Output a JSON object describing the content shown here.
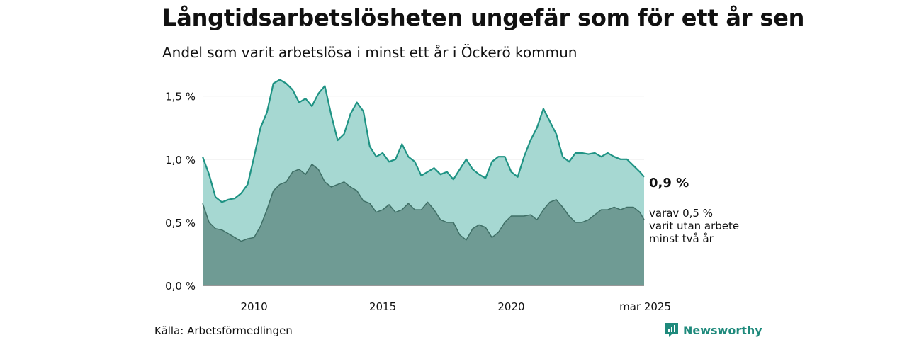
{
  "title": "Långtidsarbetslösheten ungefär som för ett år sen",
  "subtitle": "Andel som varit arbetslösa i minst ett år i Öckerö kommun",
  "source": "Källa: Arbetsförmedlingen",
  "brand": {
    "name": "Newsworthy",
    "icon": "newsworthy-logo-icon"
  },
  "colors": {
    "series1_line": "#1f9384",
    "series1_fill": "#a6d8d2",
    "series2_line": "#3f6f66",
    "series2_fill": "#6f9b94",
    "gridline": "#d4d4d4",
    "text": "#111111",
    "brand": "#1f8a7c"
  },
  "chart_data": {
    "type": "area",
    "title": "Långtidsarbetslösheten ungefär som för ett år sen",
    "subtitle": "Andel som varit arbetslösa i minst ett år i Öckerö kommun",
    "x_range": [
      "2008-01",
      "2025-03"
    ],
    "ylim": [
      0,
      1.7
    ],
    "y_ticks": [
      0.0,
      0.5,
      1.0,
      1.5
    ],
    "y_tick_labels": [
      "0,0 %",
      "0,5 %",
      "1,0 %",
      "1,5 %"
    ],
    "x_tick_labels": [
      "2010",
      "2015",
      "2020",
      "mar 2025"
    ],
    "grid": true,
    "legend": "none",
    "end_labels": {
      "series1": "0,9 %",
      "series2": [
        "varav 0,5 %",
        "varit utan arbete",
        "minst två år"
      ]
    },
    "series": [
      {
        "x": [
          "2008-01",
          "2008-04",
          "2008-07",
          "2008-10",
          "2009-01",
          "2009-04",
          "2009-07",
          "2009-10",
          "2010-01",
          "2010-04",
          "2010-07",
          "2010-10",
          "2011-01",
          "2011-04",
          "2011-07",
          "2011-10",
          "2012-01",
          "2012-04",
          "2012-07",
          "2012-10",
          "2013-01",
          "2013-04",
          "2013-07",
          "2013-10",
          "2014-01",
          "2014-04",
          "2014-07",
          "2014-10",
          "2015-01",
          "2015-04",
          "2015-07",
          "2015-10",
          "2016-01",
          "2016-04",
          "2016-07",
          "2016-10",
          "2017-01",
          "2017-04",
          "2017-07",
          "2017-10",
          "2018-01",
          "2018-04",
          "2018-07",
          "2018-10",
          "2019-01",
          "2019-04",
          "2019-07",
          "2019-10",
          "2020-01",
          "2020-04",
          "2020-07",
          "2020-10",
          "2021-01",
          "2021-04",
          "2021-07",
          "2021-10",
          "2022-01",
          "2022-04",
          "2022-07",
          "2022-10",
          "2023-01",
          "2023-04",
          "2023-07",
          "2023-10",
          "2024-01",
          "2024-04",
          "2024-07",
          "2024-10",
          "2025-01",
          "2025-03"
        ],
        "values": [
          1.02,
          0.88,
          0.7,
          0.66,
          0.68,
          0.69,
          0.73,
          0.8,
          1.02,
          1.25,
          1.37,
          1.6,
          1.63,
          1.6,
          1.55,
          1.45,
          1.48,
          1.42,
          1.52,
          1.58,
          1.35,
          1.15,
          1.2,
          1.36,
          1.45,
          1.38,
          1.1,
          1.02,
          1.05,
          0.98,
          1.0,
          1.12,
          1.02,
          0.98,
          0.87,
          0.9,
          0.93,
          0.88,
          0.9,
          0.84,
          0.92,
          1.0,
          0.92,
          0.88,
          0.85,
          0.98,
          1.02,
          1.02,
          0.9,
          0.86,
          1.02,
          1.15,
          1.25,
          1.4,
          1.3,
          1.2,
          1.02,
          0.98,
          1.05,
          1.05,
          1.04,
          1.05,
          1.02,
          1.05,
          1.02,
          1.0,
          1.0,
          0.95,
          0.9,
          0.86
        ]
      },
      {
        "x": [
          "2008-01",
          "2008-04",
          "2008-07",
          "2008-10",
          "2009-01",
          "2009-04",
          "2009-07",
          "2009-10",
          "2010-01",
          "2010-04",
          "2010-07",
          "2010-10",
          "2011-01",
          "2011-04",
          "2011-07",
          "2011-10",
          "2012-01",
          "2012-04",
          "2012-07",
          "2012-10",
          "2013-01",
          "2013-04",
          "2013-07",
          "2013-10",
          "2014-01",
          "2014-04",
          "2014-07",
          "2014-10",
          "2015-01",
          "2015-04",
          "2015-07",
          "2015-10",
          "2016-01",
          "2016-04",
          "2016-07",
          "2016-10",
          "2017-01",
          "2017-04",
          "2017-07",
          "2017-10",
          "2018-01",
          "2018-04",
          "2018-07",
          "2018-10",
          "2019-01",
          "2019-04",
          "2019-07",
          "2019-10",
          "2020-01",
          "2020-04",
          "2020-07",
          "2020-10",
          "2021-01",
          "2021-04",
          "2021-07",
          "2021-10",
          "2022-01",
          "2022-04",
          "2022-07",
          "2022-10",
          "2023-01",
          "2023-04",
          "2023-07",
          "2023-10",
          "2024-01",
          "2024-04",
          "2024-07",
          "2024-10",
          "2025-01",
          "2025-03"
        ],
        "values": [
          0.65,
          0.5,
          0.45,
          0.44,
          0.41,
          0.38,
          0.35,
          0.37,
          0.38,
          0.47,
          0.6,
          0.75,
          0.8,
          0.82,
          0.9,
          0.92,
          0.88,
          0.96,
          0.92,
          0.82,
          0.78,
          0.8,
          0.82,
          0.78,
          0.75,
          0.67,
          0.65,
          0.58,
          0.6,
          0.64,
          0.58,
          0.6,
          0.65,
          0.6,
          0.6,
          0.66,
          0.6,
          0.52,
          0.5,
          0.5,
          0.4,
          0.36,
          0.45,
          0.48,
          0.46,
          0.38,
          0.42,
          0.5,
          0.55,
          0.55,
          0.55,
          0.56,
          0.52,
          0.6,
          0.66,
          0.68,
          0.62,
          0.55,
          0.5,
          0.5,
          0.52,
          0.56,
          0.6,
          0.6,
          0.62,
          0.6,
          0.62,
          0.62,
          0.58,
          0.52
        ]
      }
    ]
  }
}
